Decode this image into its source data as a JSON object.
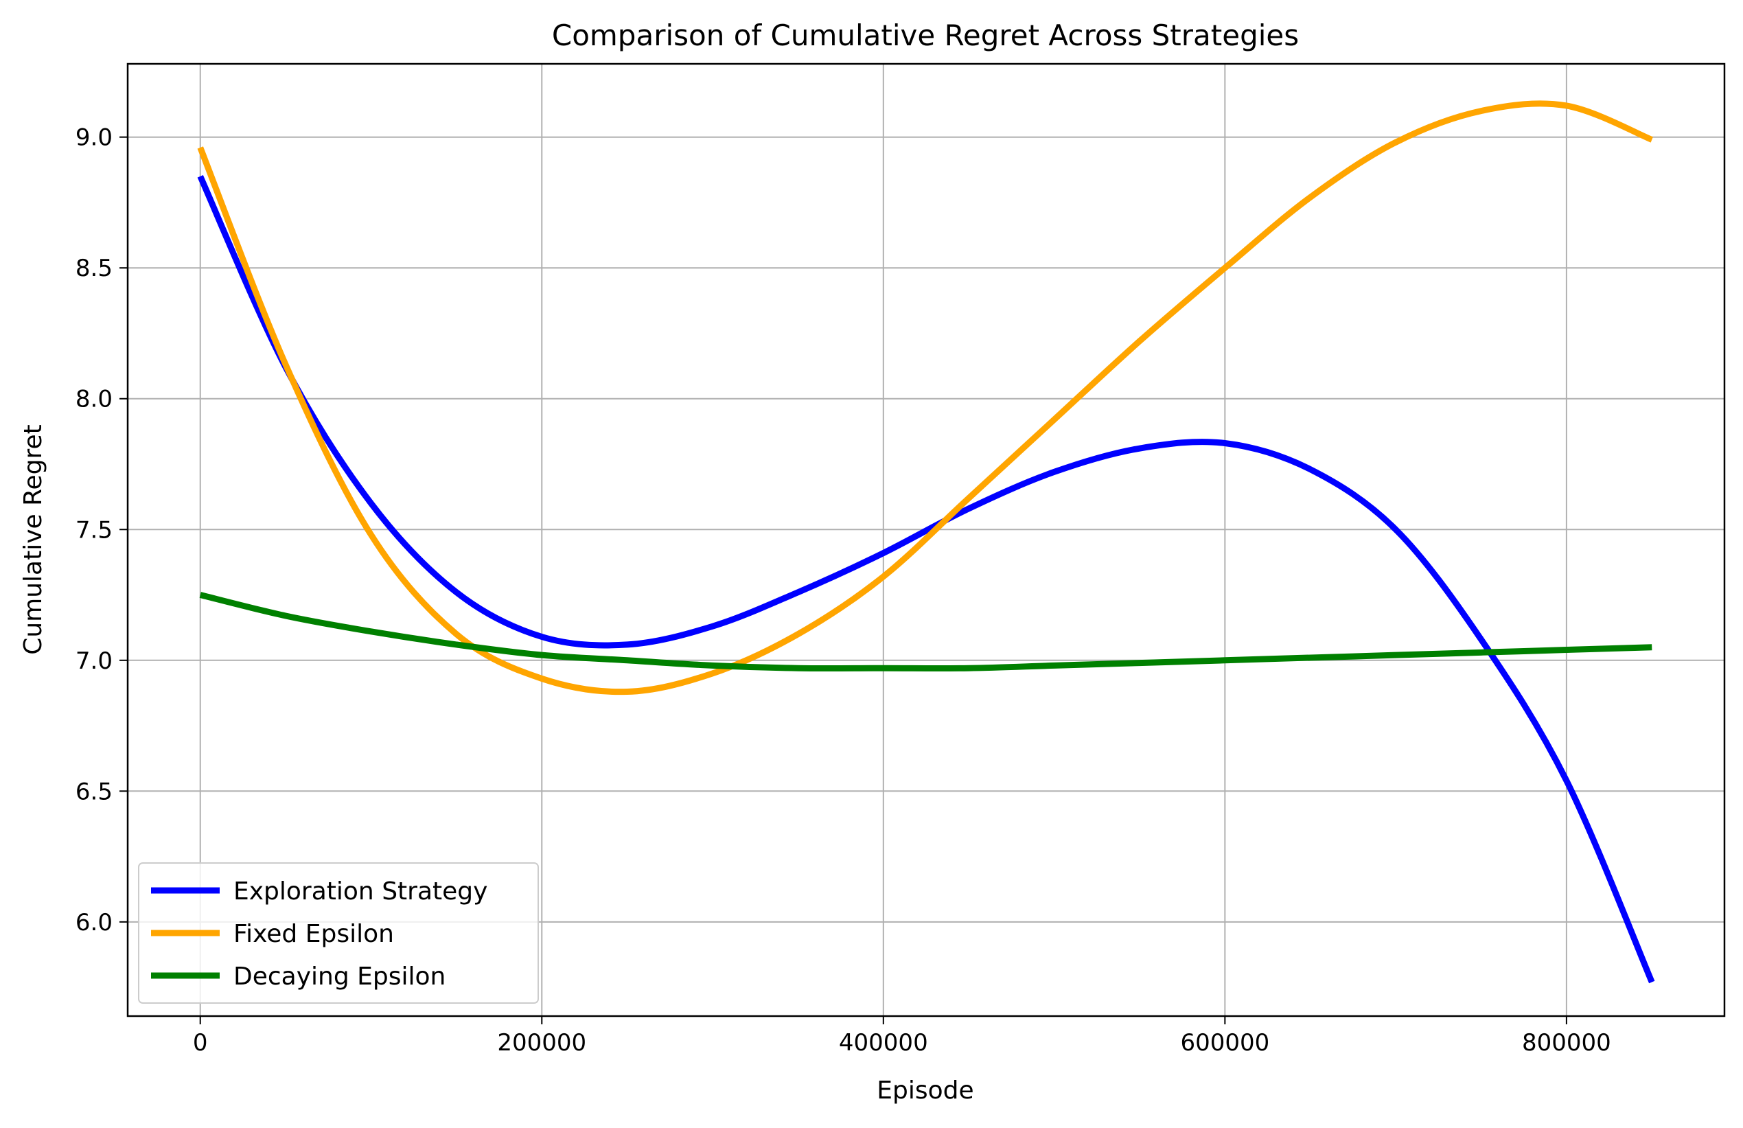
{
  "chart_data": {
    "type": "line",
    "title": "Comparison of Cumulative Regret Across Strategies",
    "xlabel": "Episode",
    "ylabel": "Cumulative Regret",
    "xlim": [
      -42500,
      892500
    ],
    "ylim": [
      5.64,
      9.28
    ],
    "xticks": [
      0,
      200000,
      400000,
      600000,
      800000
    ],
    "xtick_labels": [
      "0",
      "200000",
      "400000",
      "600000",
      "800000"
    ],
    "yticks": [
      6.0,
      6.5,
      7.0,
      7.5,
      8.0,
      8.5,
      9.0
    ],
    "ytick_labels": [
      "6.0",
      "6.5",
      "7.0",
      "7.5",
      "8.0",
      "8.5",
      "9.0"
    ],
    "grid": true,
    "legend_position": "lower-left",
    "x": [
      0,
      50000,
      100000,
      150000,
      200000,
      250000,
      300000,
      350000,
      400000,
      450000,
      500000,
      550000,
      600000,
      650000,
      700000,
      750000,
      800000,
      850000
    ],
    "series": [
      {
        "name": "Exploration Strategy",
        "color": "#0000ff",
        "values": [
          8.85,
          8.12,
          7.6,
          7.26,
          7.09,
          7.06,
          7.13,
          7.26,
          7.41,
          7.58,
          7.72,
          7.81,
          7.83,
          7.73,
          7.5,
          7.08,
          6.54,
          5.77
        ]
      },
      {
        "name": "Fixed Epsilon",
        "color": "#ffa500",
        "values": [
          8.96,
          8.13,
          7.48,
          7.1,
          6.93,
          6.88,
          6.95,
          7.1,
          7.32,
          7.62,
          7.92,
          8.22,
          8.5,
          8.77,
          8.98,
          9.1,
          9.12,
          8.99
        ]
      },
      {
        "name": "Decaying Epsilon",
        "color": "#008000",
        "values": [
          7.25,
          7.17,
          7.11,
          7.06,
          7.02,
          7.0,
          6.98,
          6.97,
          6.97,
          6.97,
          6.98,
          6.99,
          7.0,
          7.01,
          7.02,
          7.03,
          7.04,
          7.05
        ]
      }
    ]
  }
}
